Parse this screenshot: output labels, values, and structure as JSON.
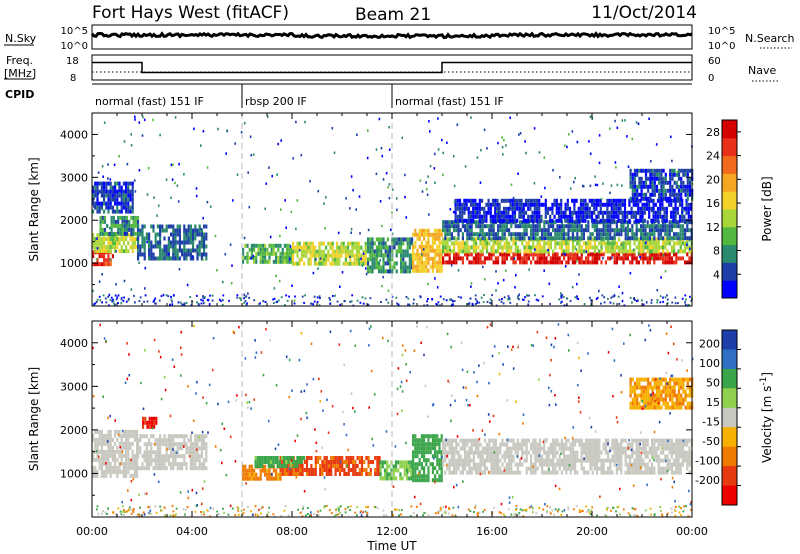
{
  "header": {
    "station": "Fort Hays West (fitACF)",
    "beam": "Beam 21",
    "date": "11/Oct/2014"
  },
  "params": {
    "nsky_label": "N.Sky",
    "nsearch_label": "N.Search",
    "freq_label_line1": "Freq.",
    "freq_label_line2": "[MHz]",
    "nave_label": "Nave",
    "cpid_label": "CPID",
    "freq_ticks": [
      "18",
      "8"
    ],
    "nave_ticks": [
      "60",
      "0"
    ],
    "nsky_ticks": [
      "10^5",
      "10^0"
    ],
    "nsearch_ticks": [
      "10^5",
      "10^0"
    ],
    "freq_steps": [
      {
        "start": 0,
        "end": 2,
        "mhz": 15
      },
      {
        "start": 2,
        "end": 14,
        "mhz": 11
      },
      {
        "start": 14,
        "end": 24,
        "mhz": 15
      }
    ]
  },
  "modes": [
    {
      "label": "normal (fast) 151 IF",
      "start_hour": 0,
      "end_hour": 6
    },
    {
      "label": "rbsp 200 IF",
      "start_hour": 6,
      "end_hour": 12
    },
    {
      "label": "normal (fast) 151 IF",
      "start_hour": 12,
      "end_hour": 24
    }
  ],
  "colors": {
    "white": "#ffffff",
    "grid": "#bbbbbb"
  },
  "chart_data": [
    {
      "type": "heatmap",
      "quantity": "power",
      "ylabel": "Slant Range [km]",
      "xlabel": "",
      "xlim": [
        0,
        24
      ],
      "ylim": [
        0,
        4500
      ],
      "yticks": [
        "1000",
        "2000",
        "3000",
        "4000"
      ],
      "xticks": [
        "00:00",
        "04:00",
        "08:00",
        "12:00",
        "16:00",
        "20:00",
        "00:00"
      ],
      "colorbar": {
        "label": "Power [dB]",
        "ticks": [
          "4",
          "8",
          "12",
          "16",
          "20",
          "24",
          "28"
        ],
        "range": [
          0,
          30
        ],
        "colors": [
          "#0000ff",
          "#1e3fa8",
          "#2b8a6e",
          "#54b840",
          "#a8d63a",
          "#f2d22a",
          "#f5a623",
          "#f26b1d",
          "#e8301a",
          "#d40000"
        ]
      },
      "bands": [
        {
          "t0": 0.0,
          "t1": 0.8,
          "r0": 950,
          "r1": 1300,
          "value": 26
        },
        {
          "t0": 0.0,
          "t1": 1.8,
          "r0": 1300,
          "r1": 1700,
          "value": 14
        },
        {
          "t0": 0.3,
          "t1": 1.8,
          "r0": 1700,
          "r1": 2100,
          "value": 8
        },
        {
          "t0": 0.0,
          "t1": 1.6,
          "r0": 2200,
          "r1": 2900,
          "value": 4
        },
        {
          "t0": 1.8,
          "t1": 4.6,
          "r0": 1100,
          "r1": 1900,
          "value": 6
        },
        {
          "t0": 6.0,
          "t1": 8.0,
          "r0": 1000,
          "r1": 1450,
          "value": 10
        },
        {
          "t0": 8.0,
          "t1": 11.0,
          "r0": 950,
          "r1": 1500,
          "value": 14
        },
        {
          "t0": 11.0,
          "t1": 12.8,
          "r0": 800,
          "r1": 1600,
          "value": 8
        },
        {
          "t0": 12.8,
          "t1": 14.0,
          "r0": 850,
          "r1": 1800,
          "value": 18
        },
        {
          "t0": 14.0,
          "t1": 24.0,
          "r0": 1000,
          "r1": 1250,
          "value": 27
        },
        {
          "t0": 14.0,
          "t1": 24.0,
          "r0": 1250,
          "r1": 1600,
          "value": 14
        },
        {
          "t0": 14.0,
          "t1": 24.0,
          "r0": 1600,
          "r1": 2000,
          "value": 6
        },
        {
          "t0": 14.5,
          "t1": 24.0,
          "r0": 2000,
          "r1": 2500,
          "value": 3
        },
        {
          "t0": 21.5,
          "t1": 24.0,
          "r0": 2500,
          "r1": 3200,
          "value": 4
        }
      ]
    },
    {
      "type": "heatmap",
      "quantity": "velocity",
      "ylabel": "Slant Range [km]",
      "xlabel": "Time UT",
      "xlim": [
        0,
        24
      ],
      "ylim": [
        0,
        4500
      ],
      "yticks": [
        "1000",
        "2000",
        "3000",
        "4000"
      ],
      "xticks": [
        "00:00",
        "04:00",
        "08:00",
        "12:00",
        "16:00",
        "20:00",
        "00:00"
      ],
      "colorbar": {
        "label": "Velocity [m s^-1]",
        "ticks": [
          "200",
          "100",
          "50",
          "15",
          "-15",
          "-50",
          "-100",
          "-200"
        ],
        "colors": [
          "#1e3fa8",
          "#2f6fc4",
          "#3aa54a",
          "#8fd14f",
          "#c8c8c0",
          "#f5b000",
          "#f07a00",
          "#e83a10",
          "#ee0000"
        ]
      },
      "bands": [
        {
          "t0": 0.0,
          "t1": 1.8,
          "r0": 950,
          "r1": 2000,
          "value": 0
        },
        {
          "t0": 1.8,
          "t1": 4.6,
          "r0": 1100,
          "r1": 1900,
          "value": 0
        },
        {
          "t0": 2.0,
          "t1": 2.6,
          "r0": 2100,
          "r1": 2300,
          "value": -150
        },
        {
          "t0": 6.0,
          "t1": 7.5,
          "r0": 900,
          "r1": 1200,
          "value": -40
        },
        {
          "t0": 7.5,
          "t1": 11.5,
          "r0": 1000,
          "r1": 1400,
          "value": -80
        },
        {
          "t0": 6.5,
          "t1": 8.5,
          "r0": 1200,
          "r1": 1400,
          "value": 40
        },
        {
          "t0": 11.5,
          "t1": 12.8,
          "r0": 900,
          "r1": 1300,
          "value": 30
        },
        {
          "t0": 12.8,
          "t1": 14.0,
          "r0": 800,
          "r1": 1900,
          "value": 45
        },
        {
          "t0": 14.0,
          "t1": 24.0,
          "r0": 1000,
          "r1": 1800,
          "value": 0
        },
        {
          "t0": 21.5,
          "t1": 24.0,
          "r0": 2500,
          "r1": 3200,
          "value": -30
        }
      ]
    }
  ]
}
